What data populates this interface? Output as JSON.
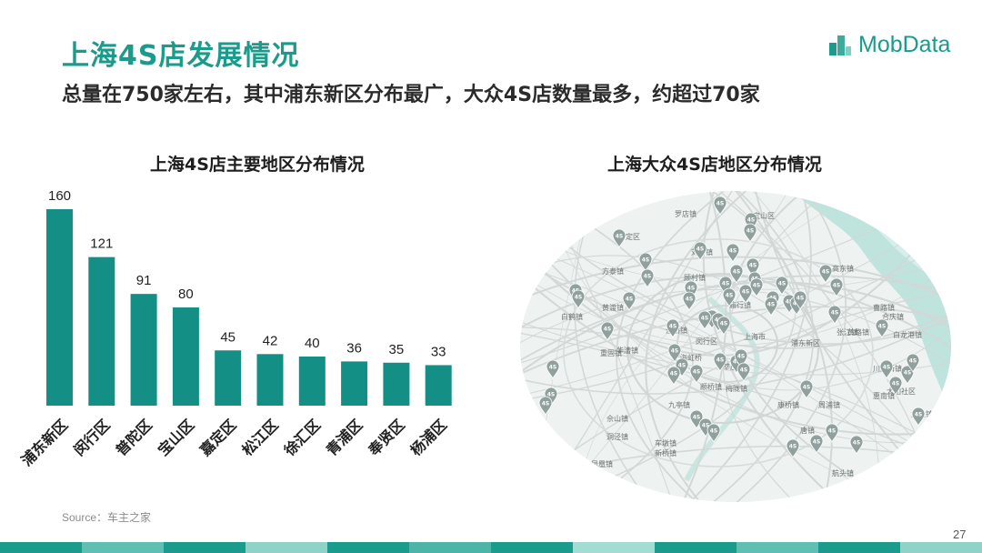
{
  "header": {
    "title": "上海4S店发展情况",
    "subtitle": "总量在750家左右，其中浦东新区分布最广，大众4S店数量最多，约超过70家",
    "logo_text": "MobData"
  },
  "colors": {
    "accent": "#148f85",
    "bar": "#148f85",
    "map_water": "#bfe3dd",
    "map_land": "#eef2f1"
  },
  "chart_data": [
    {
      "type": "bar",
      "title": "上海4S店主要地区分布情况",
      "categories": [
        "浦东新区",
        "闵行区",
        "普陀区",
        "宝山区",
        "嘉定区",
        "松江区",
        "徐汇区",
        "青浦区",
        "奉贤区",
        "杨浦区"
      ],
      "values": [
        160,
        121,
        91,
        80,
        45,
        42,
        40,
        36,
        35,
        33
      ],
      "xlabel": "",
      "ylabel": "",
      "ylim": [
        0,
        160
      ],
      "grid": false
    }
  ],
  "map": {
    "title": "上海大众4S店地区分布情况",
    "marker_label": "4S",
    "labels": [
      "罗店镇",
      "刘行镇",
      "顾村镇",
      "方泰镇",
      "黄渡镇",
      "江桥镇",
      "白鹤镇",
      "重固镇",
      "华漕镇",
      "上海虹桥",
      "上海市",
      "九亭镇",
      "佘山镇",
      "洞泾镇",
      "车墩镇",
      "新桥镇",
      "莘庄镇",
      "颛桥镇",
      "梅陇镇",
      "庙行镇",
      "唐镇",
      "曹路镇",
      "张江镇",
      "川沙新镇",
      "六灶镇",
      "航头镇",
      "周浦镇",
      "康桥镇",
      "宝山区",
      "嘉定区",
      "浦东新区",
      "高东镇",
      "合庆镇",
      "黄路镇",
      "白龙港镇",
      "惠南镇",
      "闵行区",
      "大团社区",
      "凤凰镇"
    ]
  },
  "footer": {
    "source": "Source：车主之家",
    "page_number": "27"
  }
}
